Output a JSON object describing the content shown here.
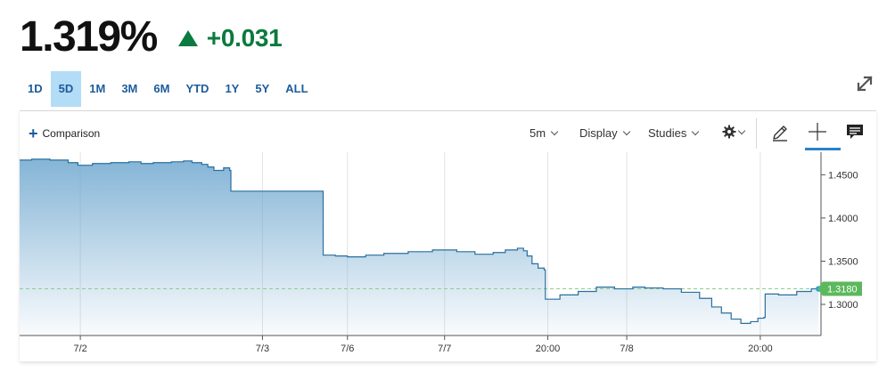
{
  "quote": {
    "last": "1.319%",
    "change": "+0.031",
    "change_color": "#0b7a3e"
  },
  "ranges": [
    "1D",
    "5D",
    "1M",
    "3M",
    "6M",
    "YTD",
    "1Y",
    "5Y",
    "ALL"
  ],
  "active_range": "5D",
  "toolbar": {
    "comparison_label": "Comparison",
    "interval_label": "5m",
    "display_label": "Display",
    "studies_label": "Studies",
    "icons": [
      "gear-icon",
      "pencil-icon",
      "crosshair-icon",
      "comment-icon",
      "expand-icon"
    ]
  },
  "chart_data": {
    "type": "area",
    "color_line": "#2a6f9e",
    "color_fill": "#6fa7cf",
    "y_ticks": [
      "1.4500",
      "1.4000",
      "1.3500",
      "1.3000"
    ],
    "y_tick_values": [
      1.45,
      1.4,
      1.35,
      1.3
    ],
    "ylim": [
      1.264,
      1.472
    ],
    "x_ticks": [
      "7/2",
      "7/3",
      "7/6",
      "7/7",
      "20:00",
      "7/8",
      "20:00"
    ],
    "x_tick_positions": [
      0.5,
      2.0,
      2.7,
      3.5,
      4.35,
      5.0,
      6.1
    ],
    "xlim": [
      0,
      6.6
    ],
    "last_value": 1.318,
    "last_label": "1.3180",
    "series": [
      {
        "values": [
          [
            0.0,
            1.467
          ],
          [
            0.1,
            1.468
          ],
          [
            0.25,
            1.467
          ],
          [
            0.4,
            1.464
          ],
          [
            0.48,
            1.461
          ],
          [
            0.6,
            1.463
          ],
          [
            0.75,
            1.464
          ],
          [
            0.9,
            1.465
          ],
          [
            1.0,
            1.463
          ],
          [
            1.1,
            1.464
          ],
          [
            1.25,
            1.465
          ],
          [
            1.35,
            1.466
          ],
          [
            1.42,
            1.464
          ],
          [
            1.5,
            1.462
          ],
          [
            1.55,
            1.459
          ],
          [
            1.6,
            1.455
          ],
          [
            1.68,
            1.458
          ],
          [
            1.73,
            1.455
          ],
          [
            1.74,
            1.431
          ],
          [
            2.0,
            1.431
          ],
          [
            2.3,
            1.431
          ],
          [
            2.49,
            1.431
          ],
          [
            2.5,
            1.357
          ],
          [
            2.6,
            1.356
          ],
          [
            2.7,
            1.355
          ],
          [
            2.85,
            1.357
          ],
          [
            3.0,
            1.359
          ],
          [
            3.2,
            1.361
          ],
          [
            3.4,
            1.363
          ],
          [
            3.6,
            1.361
          ],
          [
            3.75,
            1.358
          ],
          [
            3.9,
            1.36
          ],
          [
            4.0,
            1.363
          ],
          [
            4.1,
            1.365
          ],
          [
            4.15,
            1.362
          ],
          [
            4.18,
            1.356
          ],
          [
            4.22,
            1.347
          ],
          [
            4.27,
            1.342
          ],
          [
            4.32,
            1.34
          ],
          [
            4.33,
            1.306
          ],
          [
            4.45,
            1.311
          ],
          [
            4.6,
            1.315
          ],
          [
            4.75,
            1.32
          ],
          [
            4.9,
            1.318
          ],
          [
            5.05,
            1.32
          ],
          [
            5.15,
            1.319
          ],
          [
            5.3,
            1.318
          ],
          [
            5.45,
            1.314
          ],
          [
            5.6,
            1.307
          ],
          [
            5.7,
            1.297
          ],
          [
            5.78,
            1.29
          ],
          [
            5.86,
            1.283
          ],
          [
            5.94,
            1.278
          ],
          [
            6.02,
            1.28
          ],
          [
            6.08,
            1.284
          ],
          [
            6.13,
            1.285
          ],
          [
            6.14,
            1.312
          ],
          [
            6.25,
            1.311
          ],
          [
            6.4,
            1.315
          ],
          [
            6.52,
            1.318
          ],
          [
            6.58,
            1.318
          ]
        ]
      }
    ]
  }
}
